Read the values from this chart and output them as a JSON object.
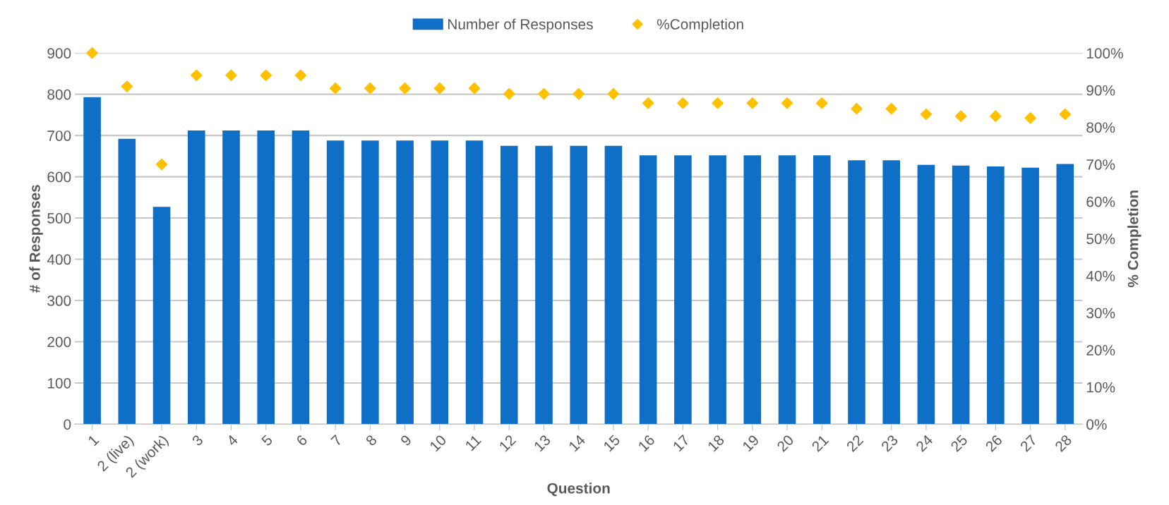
{
  "chart_data": {
    "type": "bar",
    "xlabel": "Question",
    "ylabel": "# of Responses",
    "y2label": "% Completion",
    "categories": [
      "1",
      "2 (live)",
      "2 (work)",
      "3",
      "4",
      "5",
      "6",
      "7",
      "8",
      "9",
      "10",
      "11",
      "12",
      "13",
      "14",
      "15",
      "16",
      "17",
      "18",
      "19",
      "20",
      "21",
      "22",
      "23",
      "24",
      "25",
      "26",
      "27",
      "28"
    ],
    "series": [
      {
        "name": "Number of Responses",
        "color": "#0f6fc6",
        "values": [
          793,
          692,
          527,
          712,
          712,
          712,
          712,
          688,
          688,
          688,
          688,
          688,
          675,
          675,
          675,
          675,
          652,
          652,
          652,
          652,
          652,
          652,
          640,
          640,
          629,
          627,
          625,
          622,
          631
        ]
      },
      {
        "name": "%Completion",
        "type": "scatter",
        "axis": "y2",
        "marker": "diamond",
        "color": "#ffc000",
        "values": [
          100,
          91,
          70,
          94,
          94,
          94,
          94,
          90.5,
          90.5,
          90.5,
          90.5,
          90.5,
          89,
          89,
          89,
          89,
          86.5,
          86.5,
          86.5,
          86.5,
          86.5,
          86.5,
          85,
          85,
          83.5,
          83,
          83,
          82.5,
          83.5
        ]
      }
    ],
    "ylim": [
      0,
      900
    ],
    "yticks": [
      0,
      100,
      200,
      300,
      400,
      500,
      600,
      700,
      800,
      900
    ],
    "y2lim": [
      0,
      100
    ],
    "y2ticks": [
      {
        "value": 0,
        "label": "0%"
      },
      {
        "value": 10,
        "label": "10%"
      },
      {
        "value": 20,
        "label": "20%"
      },
      {
        "value": 30,
        "label": "30%"
      },
      {
        "value": 40,
        "label": "40%"
      },
      {
        "value": 50,
        "label": "50%"
      },
      {
        "value": 60,
        "label": "60%"
      },
      {
        "value": 70,
        "label": "70%"
      },
      {
        "value": 80,
        "label": "80%"
      },
      {
        "value": 90,
        "label": "90%"
      },
      {
        "value": 100,
        "label": "100%"
      }
    ],
    "grid": "y",
    "legend": "top"
  }
}
